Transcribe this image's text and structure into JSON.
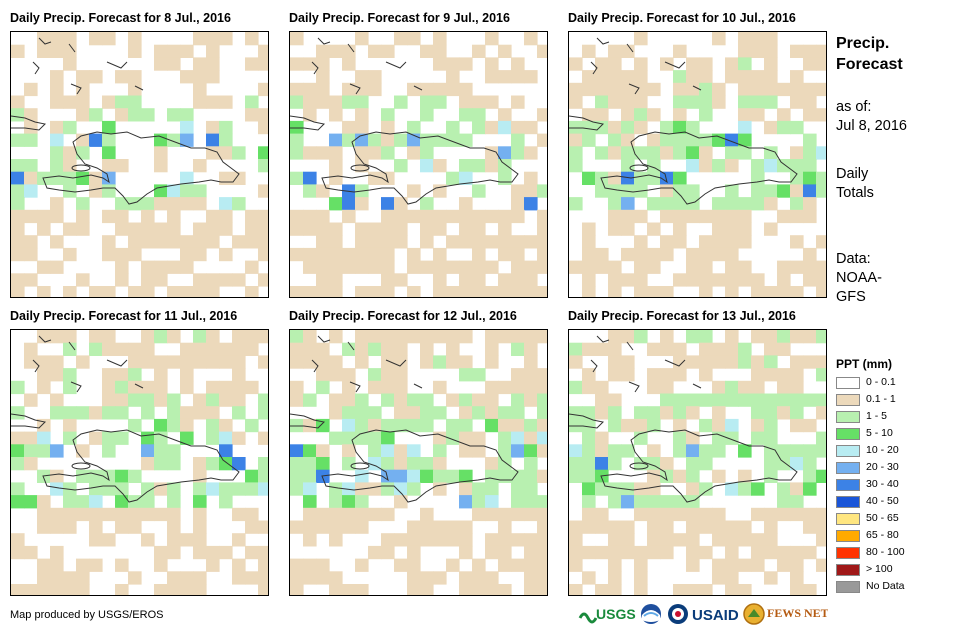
{
  "panels": [
    {
      "title": "Daily Precip. Forecast for 8 Jul., 2016"
    },
    {
      "title": "Daily Precip. Forecast for 9 Jul., 2016"
    },
    {
      "title": "Daily Precip. Forecast for 10 Jul., 2016"
    },
    {
      "title": "Daily Precip. Forecast for 11 Jul., 2016"
    },
    {
      "title": "Daily Precip. Forecast for 12 Jul., 2016"
    },
    {
      "title": "Daily Precip. Forecast for 13 Jul., 2016"
    }
  ],
  "sidebar": {
    "title_line1": "Precip.",
    "title_line2": "Forecast",
    "asof_line1": "as of:",
    "asof_line2": "Jul 8, 2016",
    "totals_line1": "Daily",
    "totals_line2": "Totals",
    "data_line1": "Data:",
    "data_line2": "NOAA-",
    "data_line3": "GFS"
  },
  "legend": {
    "title": "PPT (mm)",
    "items": [
      {
        "label": "0 - 0.1",
        "color": "#ffffff"
      },
      {
        "label": "0.1 - 1",
        "color": "#ecd9bb"
      },
      {
        "label": "1 - 5",
        "color": "#b8f0b0"
      },
      {
        "label": "5 - 10",
        "color": "#66e066"
      },
      {
        "label": "10 - 20",
        "color": "#b8ecf2"
      },
      {
        "label": "20 - 30",
        "color": "#74b0f0"
      },
      {
        "label": "30 - 40",
        "color": "#3c82e6"
      },
      {
        "label": "40 - 50",
        "color": "#1a55d8"
      },
      {
        "label": "50 - 65",
        "color": "#ffe680"
      },
      {
        "label": "65 - 80",
        "color": "#ffaa00"
      },
      {
        "label": "80 - 100",
        "color": "#ff3300"
      },
      {
        "label": "> 100",
        "color": "#a01818"
      },
      {
        "label": "No Data",
        "color": "#999999"
      }
    ]
  },
  "credit": "Map produced by USGS/EROS",
  "logos": {
    "usgs": "USGS",
    "usaid": "USAID",
    "fewsnet": "FEWS NET"
  }
}
